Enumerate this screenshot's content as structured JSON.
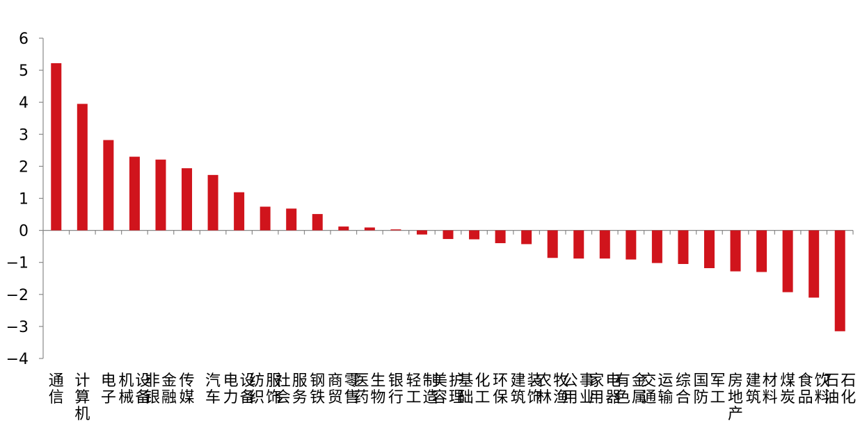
{
  "chart_data": {
    "type": "bar",
    "categories": [
      "通信",
      "计算机",
      "电子",
      "机械设备",
      "非银金融",
      "传媒",
      "汽车",
      "电力设备",
      "纺织服饰",
      "社会服务",
      "钢铁",
      "商贸零售",
      "医药生物",
      "银行",
      "轻工制造",
      "美容护理",
      "基础化工",
      "环保",
      "建筑装饰",
      "农林牧渔",
      "公用事业",
      "家用电器",
      "有色金属",
      "交通运输",
      "综合",
      "国防军工",
      "房地产",
      "建筑材料",
      "煤炭",
      "食品饮料",
      "石油石化"
    ],
    "values": [
      5.22,
      3.95,
      2.82,
      2.3,
      2.21,
      1.94,
      1.73,
      1.19,
      0.74,
      0.68,
      0.51,
      0.12,
      0.09,
      0.03,
      -0.13,
      -0.27,
      -0.28,
      -0.4,
      -0.43,
      -0.86,
      -0.88,
      -0.88,
      -0.91,
      -1.02,
      -1.05,
      -1.18,
      -1.28,
      -1.3,
      -1.93,
      -2.1,
      -3.15
    ],
    "title": "",
    "xlabel": "",
    "ylabel": "",
    "ylim": [
      -4,
      6
    ],
    "yticks": [
      "6",
      "5",
      "4",
      "3",
      "2",
      "1",
      "0",
      "−1",
      "−2",
      "−3",
      "−4"
    ],
    "grid": false,
    "bar_color": "#D0141C"
  }
}
